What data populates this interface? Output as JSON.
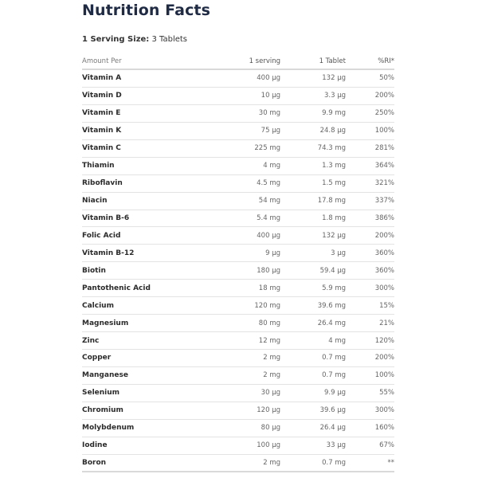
{
  "title": "Nutrition Facts",
  "serving": {
    "label": "1 Serving Size:",
    "value": "3 Tablets"
  },
  "headers": {
    "amount_per": "Amount Per",
    "serving": "1 serving",
    "tablet": "1 Tablet",
    "ri": "%RI*"
  },
  "rows": [
    {
      "name": "Vitamin A",
      "serving": "400 µg",
      "tablet": "132 µg",
      "ri": "50%"
    },
    {
      "name": "Vitamin D",
      "serving": "10 µg",
      "tablet": "3.3 µg",
      "ri": "200%"
    },
    {
      "name": "Vitamin E",
      "serving": "30 mg",
      "tablet": "9.9 mg",
      "ri": "250%"
    },
    {
      "name": "Vitamin K",
      "serving": "75 µg",
      "tablet": "24.8 µg",
      "ri": "100%"
    },
    {
      "name": "Vitamin C",
      "serving": "225 mg",
      "tablet": "74.3 mg",
      "ri": "281%"
    },
    {
      "name": "Thiamin",
      "serving": "4 mg",
      "tablet": "1.3 mg",
      "ri": "364%"
    },
    {
      "name": "Riboflavin",
      "serving": "4.5 mg",
      "tablet": "1.5 mg",
      "ri": "321%"
    },
    {
      "name": "Niacin",
      "serving": "54 mg",
      "tablet": "17.8 mg",
      "ri": "337%"
    },
    {
      "name": "Vitamin B-6",
      "serving": "5.4 mg",
      "tablet": "1.8 mg",
      "ri": "386%"
    },
    {
      "name": "Folic Acid",
      "serving": "400 µg",
      "tablet": "132 µg",
      "ri": "200%"
    },
    {
      "name": "Vitamin B-12",
      "serving": "9 µg",
      "tablet": "3 µg",
      "ri": "360%"
    },
    {
      "name": "Biotin",
      "serving": "180 µg",
      "tablet": "59.4 µg",
      "ri": "360%"
    },
    {
      "name": "Pantothenic Acid",
      "serving": "18 mg",
      "tablet": "5.9 mg",
      "ri": "300%"
    },
    {
      "name": "Calcium",
      "serving": "120 mg",
      "tablet": "39.6 mg",
      "ri": "15%"
    },
    {
      "name": "Magnesium",
      "serving": "80 mg",
      "tablet": "26.4 mg",
      "ri": "21%"
    },
    {
      "name": "Zinc",
      "serving": "12 mg",
      "tablet": "4 mg",
      "ri": "120%"
    },
    {
      "name": "Copper",
      "serving": "2 mg",
      "tablet": "0.7 mg",
      "ri": "200%"
    },
    {
      "name": "Manganese",
      "serving": "2 mg",
      "tablet": "0.7 mg",
      "ri": "100%"
    },
    {
      "name": "Selenium",
      "serving": "30 µg",
      "tablet": "9.9 µg",
      "ri": "55%"
    },
    {
      "name": "Chromium",
      "serving": "120 µg",
      "tablet": "39.6 µg",
      "ri": "300%"
    },
    {
      "name": "Molybdenum",
      "serving": "80 µg",
      "tablet": "26.4 µg",
      "ri": "160%"
    },
    {
      "name": "Iodine",
      "serving": "100 µg",
      "tablet": "33 µg",
      "ri": "67%"
    },
    {
      "name": "Boron",
      "serving": "2 mg",
      "tablet": "0.7 mg",
      "ri": "**"
    }
  ]
}
